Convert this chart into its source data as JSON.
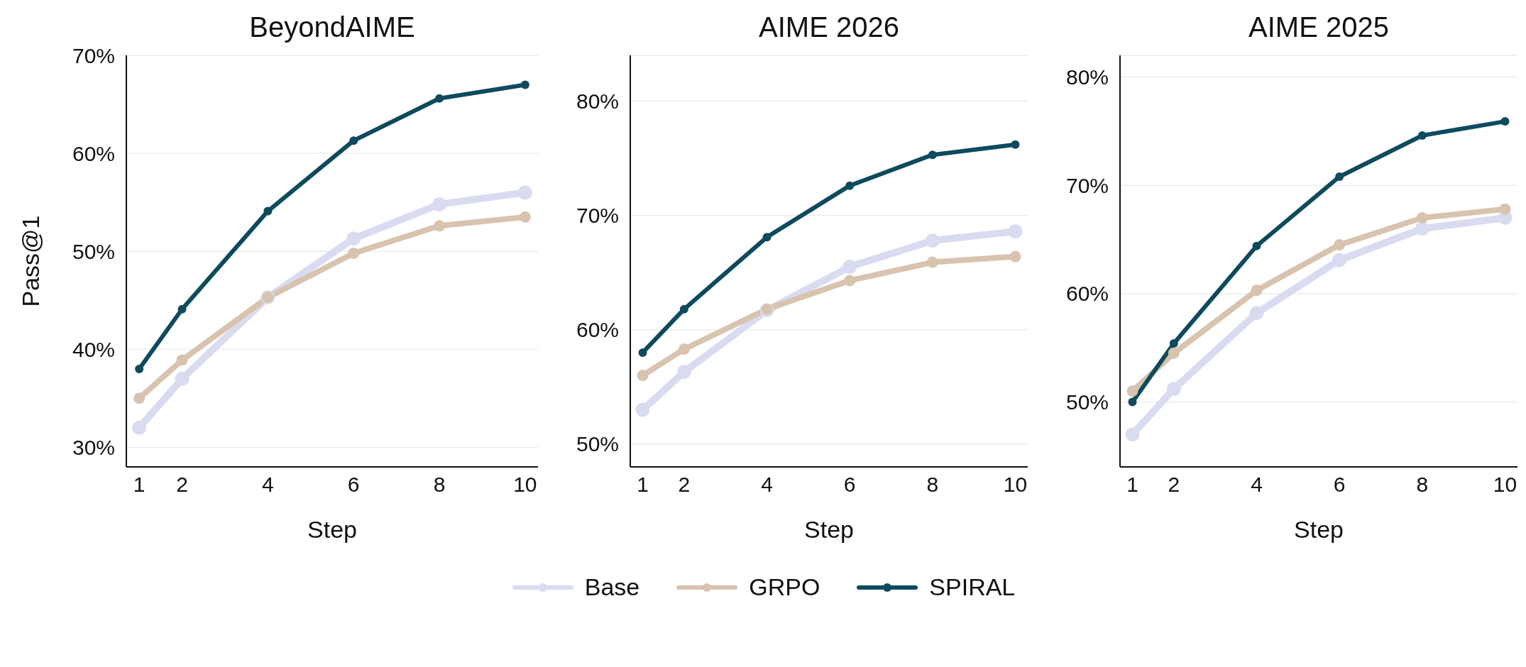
{
  "chart_data": [
    {
      "type": "line",
      "title": "BeyondAIME",
      "xlabel": "Step",
      "ylabel": "Pass@1",
      "x": [
        1,
        2,
        4,
        6,
        8,
        10
      ],
      "xlim": [
        0.7,
        10.3
      ],
      "xticks": [
        1,
        2,
        4,
        6,
        8,
        10
      ],
      "ylim": [
        28,
        70
      ],
      "yticks": [
        {
          "value": 30,
          "label": "30%"
        },
        {
          "value": 40,
          "label": "40%"
        },
        {
          "value": 50,
          "label": "50%"
        },
        {
          "value": 60,
          "label": "60%"
        },
        {
          "value": 70,
          "label": "70%"
        }
      ],
      "grid": "y",
      "marker": "circle",
      "line_style": "solid",
      "legend": "bottom",
      "series": [
        {
          "name": "Base",
          "color": "#d9dbf1",
          "values": [
            32,
            37.0,
            45.3,
            51.3,
            54.8,
            56.0
          ]
        },
        {
          "name": "GRPO",
          "color": "#d8c3ae",
          "values": [
            35.0,
            38.9,
            45.3,
            49.8,
            52.6,
            53.5
          ]
        },
        {
          "name": "SPIRAL",
          "color": "#0e4a5e",
          "values": [
            38.0,
            44.1,
            54.1,
            61.3,
            65.6,
            67.0
          ]
        }
      ]
    },
    {
      "type": "line",
      "title": "AIME 2026",
      "xlabel": "Step",
      "x": [
        1,
        2,
        4,
        6,
        8,
        10
      ],
      "xlim": [
        0.7,
        10.3
      ],
      "xticks": [
        1,
        2,
        4,
        6,
        8,
        10
      ],
      "ylim": [
        48,
        84
      ],
      "yticks": [
        {
          "value": 50,
          "label": "50%"
        },
        {
          "value": 60,
          "label": "60%"
        },
        {
          "value": 70,
          "label": "70%"
        },
        {
          "value": 80,
          "label": "80%"
        }
      ],
      "grid": "y",
      "marker": "circle",
      "line_style": "solid",
      "series": [
        {
          "name": "Base",
          "color": "#d9dbf1",
          "values": [
            53.0,
            56.3,
            61.7,
            65.5,
            67.8,
            68.6
          ]
        },
        {
          "name": "GRPO",
          "color": "#d8c3ae",
          "values": [
            56.0,
            58.3,
            61.8,
            64.3,
            65.9,
            66.4
          ]
        },
        {
          "name": "SPIRAL",
          "color": "#0e4a5e",
          "values": [
            58.0,
            61.8,
            68.1,
            72.6,
            75.3,
            76.2
          ]
        }
      ]
    },
    {
      "type": "line",
      "title": "AIME 2025",
      "xlabel": "Step",
      "x": [
        1,
        2,
        4,
        6,
        8,
        10
      ],
      "xlim": [
        0.7,
        10.3
      ],
      "xticks": [
        1,
        2,
        4,
        6,
        8,
        10
      ],
      "ylim": [
        44,
        82
      ],
      "yticks": [
        {
          "value": 50,
          "label": "50%"
        },
        {
          "value": 60,
          "label": "60%"
        },
        {
          "value": 70,
          "label": "70%"
        },
        {
          "value": 80,
          "label": "80%"
        }
      ],
      "grid": "y",
      "marker": "circle",
      "line_style": "solid",
      "series": [
        {
          "name": "Base",
          "color": "#d9dbf1",
          "values": [
            47.0,
            51.2,
            58.2,
            63.1,
            66.0,
            67.0
          ]
        },
        {
          "name": "GRPO",
          "color": "#d8c3ae",
          "values": [
            51.0,
            54.5,
            60.3,
            64.5,
            67.0,
            67.8
          ]
        },
        {
          "name": "SPIRAL",
          "color": "#0e4a5e",
          "values": [
            50.0,
            55.4,
            64.4,
            70.8,
            74.6,
            75.9
          ]
        }
      ]
    }
  ]
}
